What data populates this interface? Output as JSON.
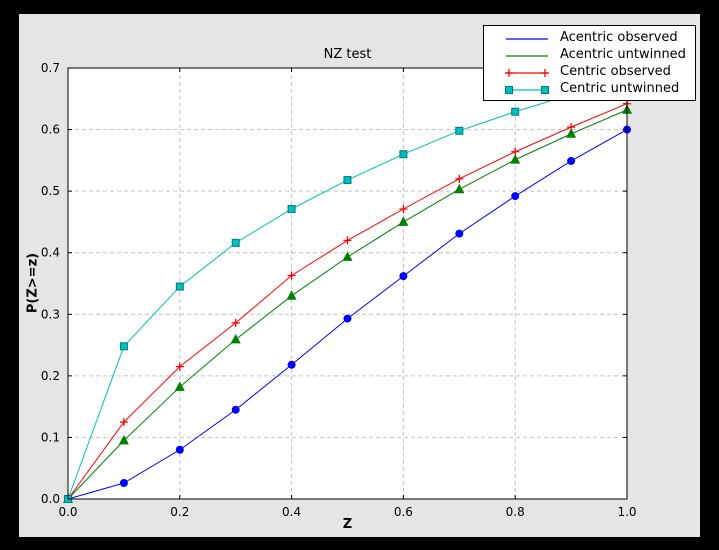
{
  "chart_data": {
    "type": "line",
    "title": "NZ test",
    "xlabel": "Z",
    "ylabel": "P(Z>=z)",
    "xlim": [
      0.0,
      1.0
    ],
    "ylim": [
      0.0,
      0.7
    ],
    "xticks": [
      "0.0",
      "0.2",
      "0.4",
      "0.6",
      "0.8",
      "1.0"
    ],
    "yticks": [
      "0.0",
      "0.1",
      "0.2",
      "0.3",
      "0.4",
      "0.5",
      "0.6",
      "0.7"
    ],
    "grid": true,
    "grid_style": "dashed",
    "legend_position": "upper right",
    "x": [
      0.0,
      0.1,
      0.2,
      0.3,
      0.4,
      0.5,
      0.6,
      0.7,
      0.8,
      0.9,
      1.0
    ],
    "series": [
      {
        "name": "Acentric observed",
        "color": "#0000ff",
        "marker": "circle",
        "legend_marker": false,
        "values": [
          0.0,
          0.026,
          0.08,
          0.145,
          0.218,
          0.293,
          0.362,
          0.431,
          0.492,
          0.549,
          0.6
        ]
      },
      {
        "name": "Acentric untwinned",
        "color": "#008000",
        "marker": "triangle",
        "legend_marker": false,
        "values": [
          0.0,
          0.095,
          0.182,
          0.259,
          0.33,
          0.393,
          0.45,
          0.503,
          0.551,
          0.593,
          0.632
        ]
      },
      {
        "name": "Centric observed",
        "color": "#ff0000",
        "marker": "plus",
        "legend_marker": true,
        "values": [
          0.0,
          0.125,
          0.215,
          0.286,
          0.363,
          0.42,
          0.471,
          0.52,
          0.564,
          0.604,
          0.642
        ]
      },
      {
        "name": "Centric untwinned",
        "color": "#00bfbf",
        "marker": "square",
        "marker_edge": "#007a7a",
        "legend_marker": true,
        "values": [
          0.0,
          0.248,
          0.345,
          0.416,
          0.471,
          0.518,
          0.56,
          0.598,
          0.629,
          0.657,
          0.683
        ]
      }
    ]
  }
}
